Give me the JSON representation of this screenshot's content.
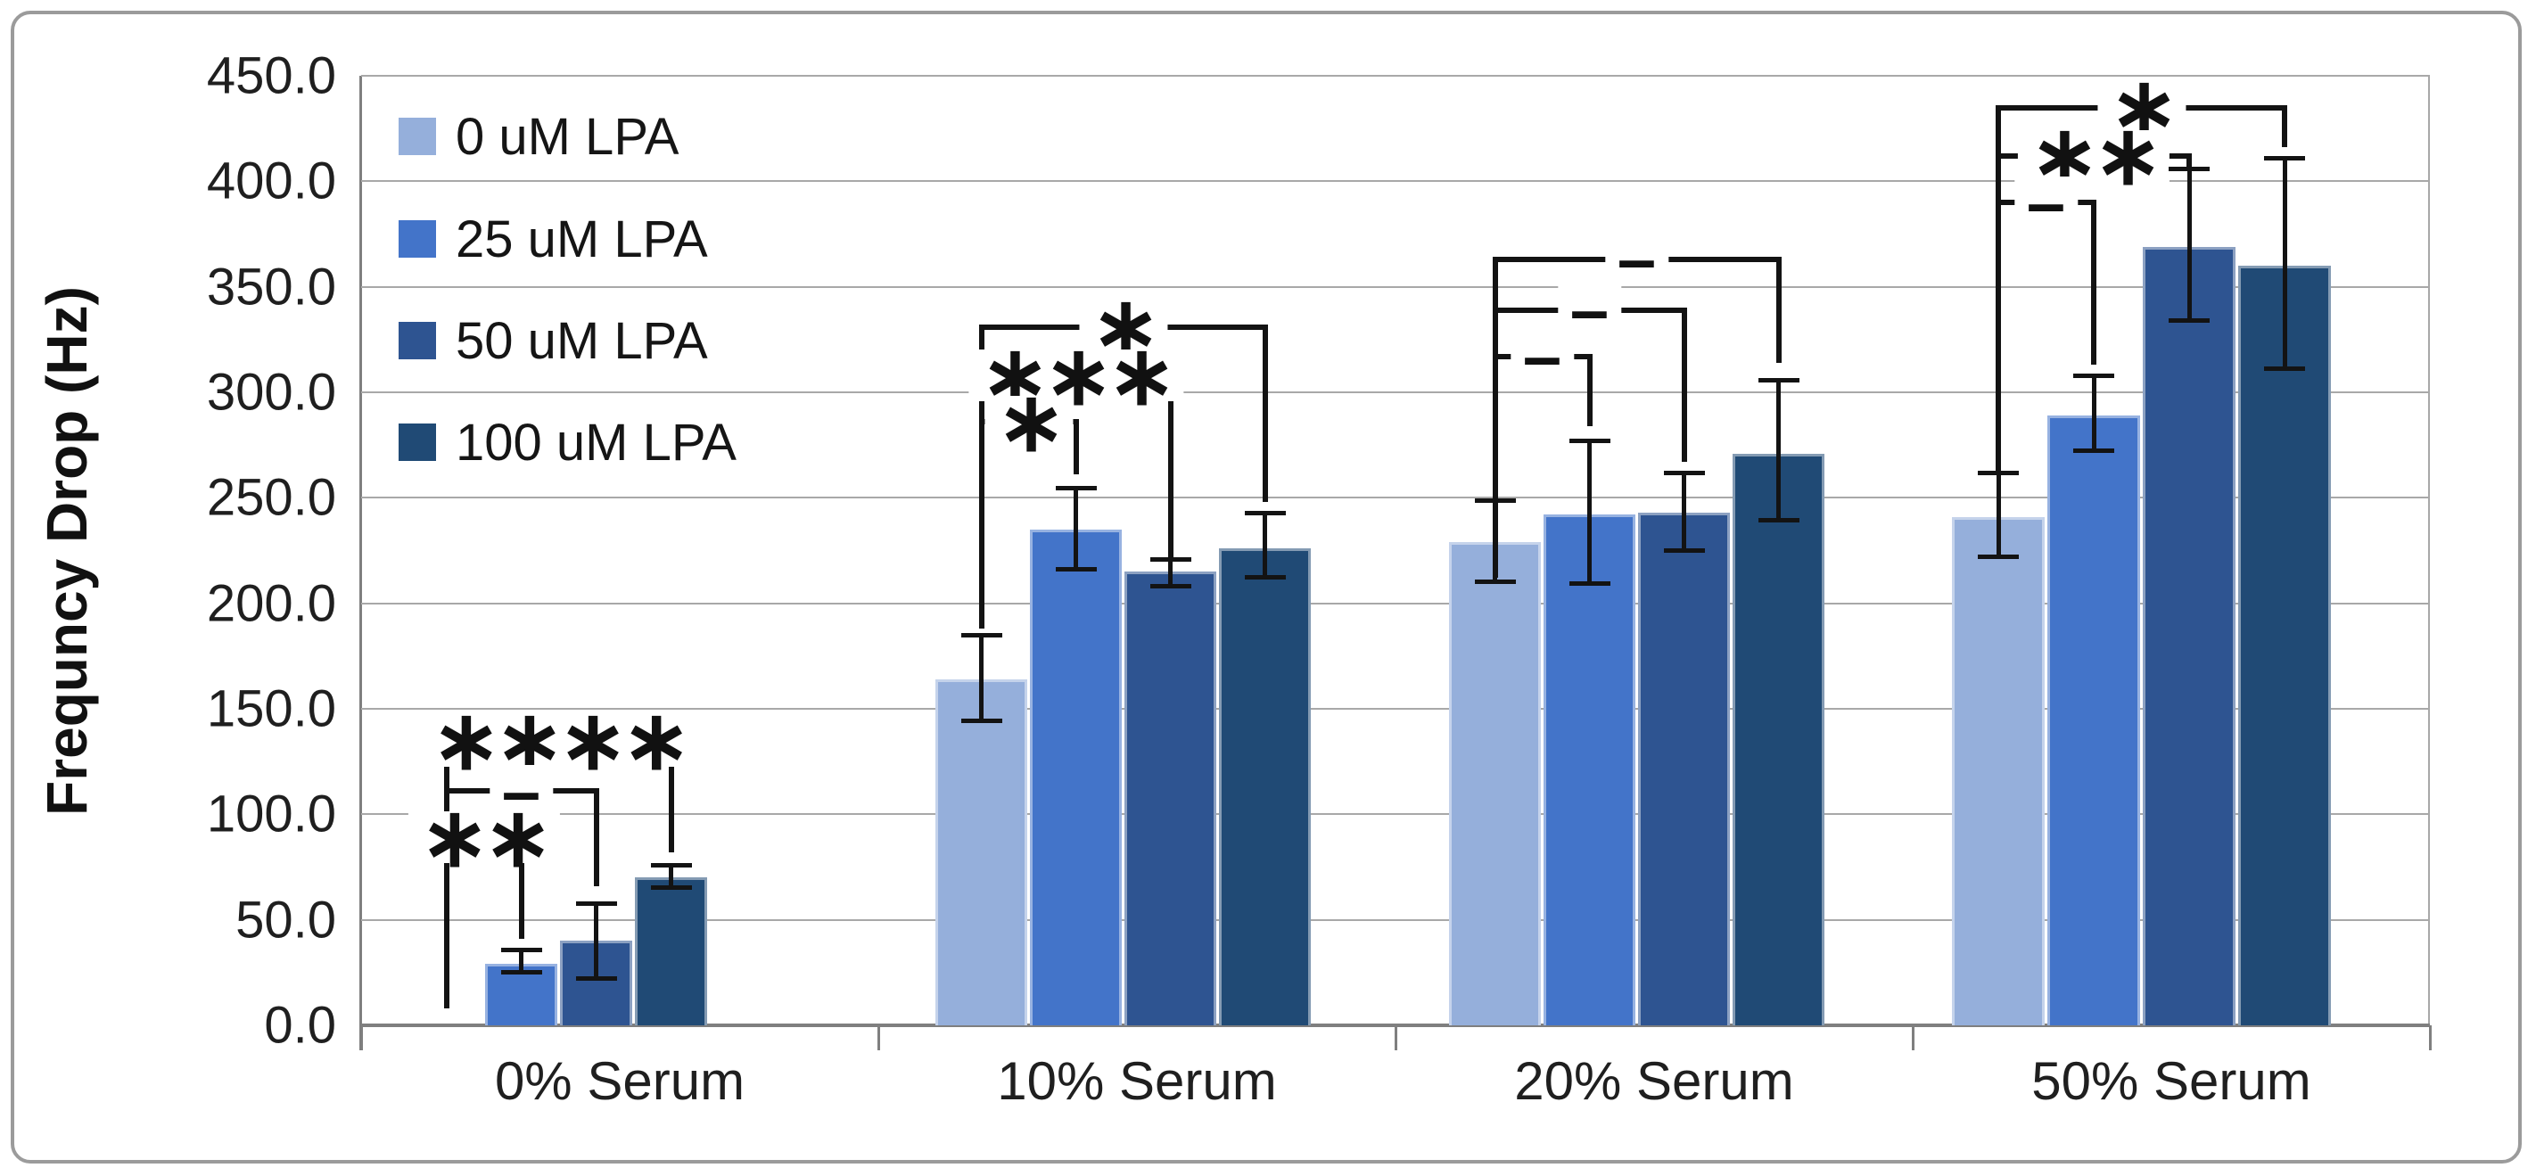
{
  "figure": {
    "background": "#ffffff",
    "border_color": "#9b9b9b"
  },
  "chart_data": {
    "type": "bar",
    "title": "",
    "xlabel": "",
    "ylabel": "Frequncy Drop (Hz)",
    "ylim": [
      0,
      450
    ],
    "ytick_step": 50,
    "grid": true,
    "legend_position": "upper-left",
    "yticks": [
      "450.0",
      "400.0",
      "350.0",
      "300.0",
      "250.0",
      "200.0",
      "150.0",
      "100.0",
      "50.0",
      "0.0"
    ],
    "categories": [
      "0% Serum",
      "10% Serum",
      "20% Serum",
      "50% Serum"
    ],
    "series": [
      {
        "name": "0 uM LPA",
        "color": "#95AFDB",
        "values": [
          0,
          164,
          229,
          241
        ],
        "err_low": [
          null,
          144,
          210,
          222
        ],
        "err_high": [
          null,
          185,
          249,
          262
        ]
      },
      {
        "name": "25 uM LPA",
        "color": "#4374C9",
        "values": [
          29,
          235,
          242,
          289
        ],
        "err_low": [
          25,
          216,
          209,
          272
        ],
        "err_high": [
          36,
          255,
          277,
          308
        ]
      },
      {
        "name": "50 uM LPA",
        "color": "#2E5491",
        "values": [
          40,
          215,
          243,
          369
        ],
        "err_low": [
          22,
          208,
          225,
          334
        ],
        "err_high": [
          58,
          221,
          262,
          406
        ]
      },
      {
        "name": "100 uM LPA",
        "color": "#204A75",
        "values": [
          70,
          226,
          271,
          360
        ],
        "err_low": [
          65,
          212,
          239,
          311
        ],
        "err_high": [
          76,
          243,
          306,
          411
        ]
      }
    ],
    "significance_brackets": [
      {
        "group": 0,
        "from_series": 0,
        "to_series": 3,
        "y": 135,
        "label": "****",
        "left_stop": 8,
        "right_stop": 82
      },
      {
        "group": 0,
        "from_series": 0,
        "to_series": 2,
        "y": 111,
        "label": "–",
        "left_stop": 8,
        "right_stop": 66
      },
      {
        "group": 0,
        "from_series": 0,
        "to_series": 1,
        "y": 89,
        "label": "**",
        "left_stop": 8,
        "right_stop": 41
      },
      {
        "group": 1,
        "from_series": 0,
        "to_series": 3,
        "y": 331,
        "label": "*",
        "left_stop": 188,
        "right_stop": 248
      },
      {
        "group": 1,
        "from_series": 0,
        "to_series": 2,
        "y": 308,
        "label": "***",
        "left_stop": 188,
        "right_stop": 222
      },
      {
        "group": 1,
        "from_series": 0,
        "to_series": 1,
        "y": 286,
        "label": "*",
        "left_stop": 188,
        "right_stop": 261
      },
      {
        "group": 2,
        "from_series": 0,
        "to_series": 3,
        "y": 363,
        "label": "–",
        "left_stop": 212,
        "right_stop": 314
      },
      {
        "group": 2,
        "from_series": 0,
        "to_series": 2,
        "y": 339,
        "label": "–",
        "left_stop": 212,
        "right_stop": 267
      },
      {
        "group": 2,
        "from_series": 0,
        "to_series": 1,
        "y": 317,
        "label": "–",
        "left_stop": 212,
        "right_stop": 284
      },
      {
        "group": 3,
        "from_series": 0,
        "to_series": 3,
        "y": 435,
        "label": "*",
        "left_stop": 263,
        "right_stop": 416
      },
      {
        "group": 3,
        "from_series": 0,
        "to_series": 2,
        "y": 412,
        "label": "**",
        "left_stop": 263,
        "right_stop": 407
      },
      {
        "group": 3,
        "from_series": 0,
        "to_series": 1,
        "y": 390,
        "label": "–",
        "left_stop": 263,
        "right_stop": 313
      }
    ]
  }
}
